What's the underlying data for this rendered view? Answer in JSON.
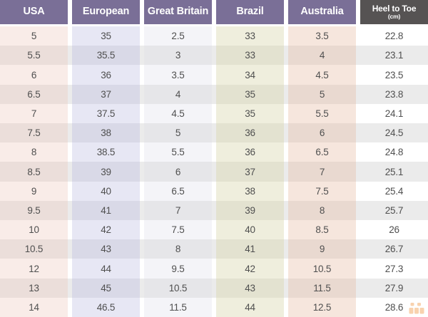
{
  "page": {
    "background": "#ffffff"
  },
  "colors": {
    "header_text": "#ffffff",
    "cell_text": "#4f4f4f",
    "row_stripe": "#ebebeb",
    "watermark_orange": "#f2a65f"
  },
  "table": {
    "columns": [
      {
        "key": "usa",
        "label": "USA",
        "header_bg": "#7a6f97",
        "tint": "#f9ece8",
        "tint_shaded": "#ebdeda"
      },
      {
        "key": "european",
        "label": "European",
        "header_bg": "#7a6f97",
        "tint": "#e7e7f4",
        "tint_shaded": "#d9d9e7"
      },
      {
        "key": "great-britain",
        "label": "Great Britain",
        "header_bg": "#7a6f97",
        "tint": "#f4f4f8",
        "tint_shaded": "#e6e6e9"
      },
      {
        "key": "brazil",
        "label": "Brazil",
        "header_bg": "#7a6f97",
        "tint": "#efeedd",
        "tint_shaded": "#e3e2d0"
      },
      {
        "key": "australia",
        "label": "Australia",
        "header_bg": "#7a6f97",
        "tint": "#f6e6dd",
        "tint_shaded": "#e9d9d0"
      },
      {
        "key": "heel-to-toe",
        "label": "Heel to Toe",
        "sublabel": "(cm)",
        "header_bg": "#565353",
        "tint": "#ffffff",
        "tint_shaded": "#ebebeb"
      }
    ]
  },
  "chart_data": {
    "type": "table",
    "columns": [
      "USA",
      "European",
      "Great Britain",
      "Brazil",
      "Australia",
      "Heel to Toe (cm)"
    ],
    "rows": [
      [
        "5",
        "35",
        "2.5",
        "33",
        "3.5",
        "22.8"
      ],
      [
        "5.5",
        "35.5",
        "3",
        "33",
        "4",
        "23.1"
      ],
      [
        "6",
        "36",
        "3.5",
        "34",
        "4.5",
        "23.5"
      ],
      [
        "6.5",
        "37",
        "4",
        "35",
        "5",
        "23.8"
      ],
      [
        "7",
        "37.5",
        "4.5",
        "35",
        "5.5",
        "24.1"
      ],
      [
        "7.5",
        "38",
        "5",
        "36",
        "6",
        "24.5"
      ],
      [
        "8",
        "38.5",
        "5.5",
        "36",
        "6.5",
        "24.8"
      ],
      [
        "8.5",
        "39",
        "6",
        "37",
        "7",
        "25.1"
      ],
      [
        "9",
        "40",
        "6.5",
        "38",
        "7.5",
        "25.4"
      ],
      [
        "9.5",
        "41",
        "7",
        "39",
        "8",
        "25.7"
      ],
      [
        "10",
        "42",
        "7.5",
        "40",
        "8.5",
        "26"
      ],
      [
        "10.5",
        "43",
        "8",
        "41",
        "9",
        "26.7"
      ],
      [
        "12",
        "44",
        "9.5",
        "42",
        "10.5",
        "27.3"
      ],
      [
        "13",
        "45",
        "10.5",
        "43",
        "11.5",
        "27.9"
      ],
      [
        "14",
        "46.5",
        "11.5",
        "44",
        "12.5",
        "28.6"
      ]
    ]
  }
}
